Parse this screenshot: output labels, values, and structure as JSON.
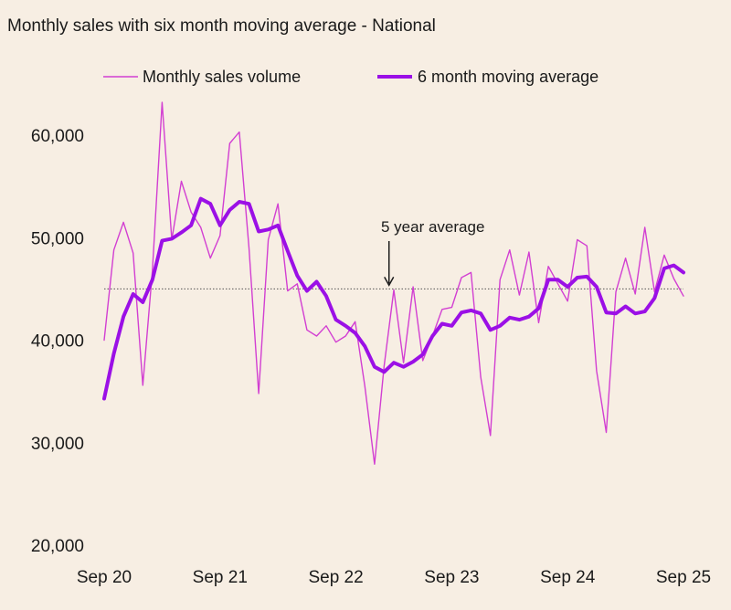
{
  "chart_data": {
    "type": "line",
    "title": "Monthly sales with six month moving average - National",
    "xlabel": "",
    "ylabel": "",
    "ylim": [
      20000,
      65000
    ],
    "y_ticks": [
      {
        "value": 20000,
        "label": "20,000"
      },
      {
        "value": 30000,
        "label": "30,000"
      },
      {
        "value": 40000,
        "label": "40,000"
      },
      {
        "value": 50000,
        "label": "50,000"
      },
      {
        "value": 60000,
        "label": "60,000"
      }
    ],
    "x_ticks": [
      {
        "month_index": 0,
        "label": "Sep 20"
      },
      {
        "month_index": 12,
        "label": "Sep 21"
      },
      {
        "month_index": 24,
        "label": "Sep 22"
      },
      {
        "month_index": 36,
        "label": "Sep 23"
      },
      {
        "month_index": 48,
        "label": "Sep 24"
      },
      {
        "month_index": 60,
        "label": "Sep 25"
      }
    ],
    "legend": {
      "position": "top"
    },
    "grid": false,
    "reference_line": {
      "value": 45000,
      "label": "5 year average",
      "annotation_month_index": 29.5
    },
    "series": [
      {
        "name": "Monthly sales volume",
        "color": "#d23fd2",
        "style": "thin",
        "values": [
          40000,
          48800,
          51500,
          48500,
          35600,
          46800,
          63200,
          49800,
          55500,
          52500,
          51000,
          48000,
          50200,
          59200,
          60300,
          49000,
          34800,
          49800,
          53300,
          44800,
          45500,
          41000,
          40400,
          41400,
          39800,
          40400,
          41800,
          35500,
          27900,
          37500,
          44900,
          37800,
          45200,
          38000,
          40400,
          43000,
          43200,
          46100,
          46600,
          36400,
          30700,
          45900,
          48800,
          44400,
          48600,
          41700,
          47200,
          45500,
          43800,
          49800,
          49200,
          37000,
          31000,
          44700,
          48000,
          44500,
          51000,
          44700,
          48300,
          46000,
          44300
        ]
      },
      {
        "name": "6 month moving average",
        "color": "#9b10e6",
        "style": "thick",
        "values": [
          34300,
          38700,
          42300,
          44500,
          43700,
          45900,
          49700,
          49900,
          50500,
          51200,
          53800,
          53300,
          51200,
          52700,
          53500,
          53300,
          50600,
          50800,
          51200,
          48700,
          46300,
          44800,
          45700,
          44300,
          42000,
          41400,
          40700,
          39400,
          37400,
          36900,
          37800,
          37400,
          37900,
          38600,
          40400,
          41600,
          41400,
          42700,
          42900,
          42600,
          41000,
          41400,
          42200,
          42000,
          42300,
          43100,
          45900,
          45900,
          45200,
          46100,
          46200,
          45200,
          42700,
          42600,
          43300,
          42600,
          42800,
          44100,
          47000,
          47300,
          46600
        ]
      }
    ]
  }
}
